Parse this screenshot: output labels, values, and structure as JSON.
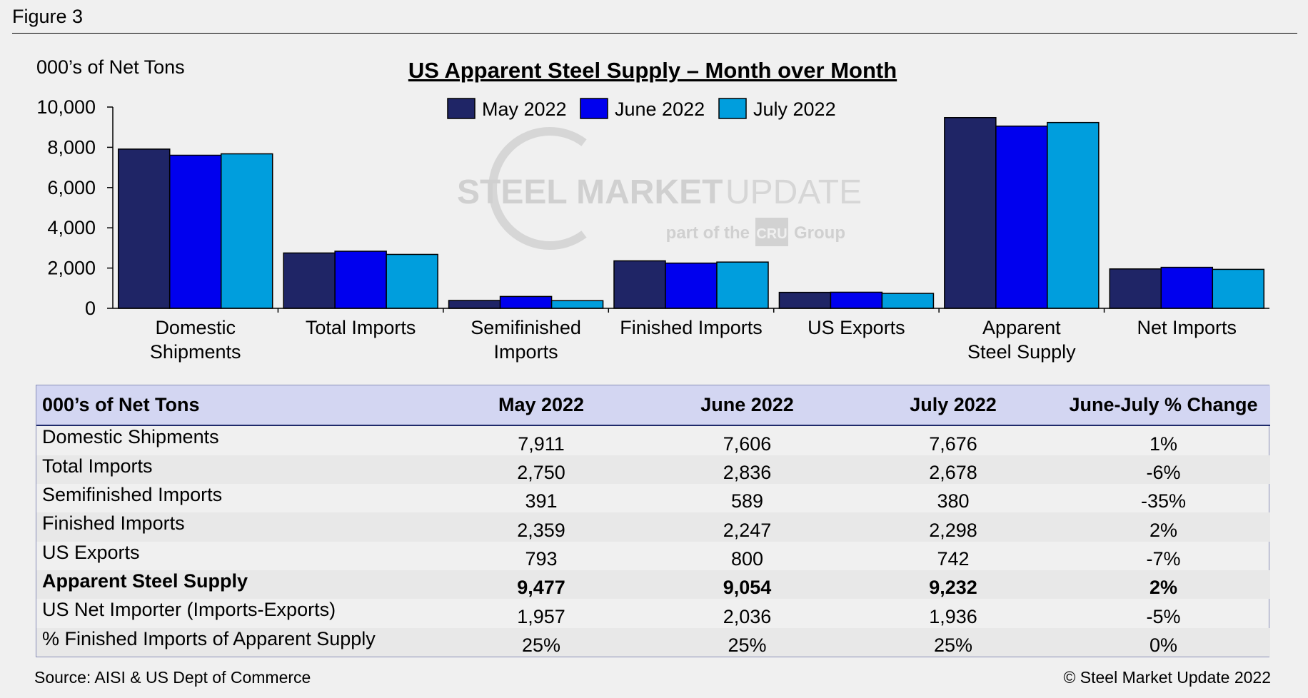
{
  "figure_label": "Figure 3",
  "watermark": {
    "brand_bold": "STEEL MARKET",
    "brand_light": "UPDATE",
    "tagline_pre": "part of the",
    "tagline_logo": "CRU",
    "tagline_post": "Group"
  },
  "chart_data": {
    "type": "bar",
    "title": "US Apparent Steel Supply – Month over Month",
    "ylabel": "000’s of Net Tons",
    "xlabel": "",
    "ylim": [
      0,
      10000
    ],
    "yticks": [
      "0",
      "2,000",
      "4,000",
      "6,000",
      "8,000",
      "10,000"
    ],
    "ytick_values": [
      0,
      2000,
      4000,
      6000,
      8000,
      10000
    ],
    "grid": false,
    "legend_position": "top-center",
    "categories": [
      [
        "Domestic",
        "Shipments"
      ],
      [
        "Total Imports"
      ],
      [
        "Semifinished",
        "Imports"
      ],
      [
        "Finished Imports"
      ],
      [
        "US Exports"
      ],
      [
        "Apparent",
        "Steel Supply"
      ],
      [
        "Net Imports"
      ]
    ],
    "series": [
      {
        "name": "May 2022",
        "color": "#1f2566",
        "values": [
          7911,
          2750,
          391,
          2359,
          793,
          9477,
          1957
        ]
      },
      {
        "name": "June 2022",
        "color": "#0000ee",
        "values": [
          7606,
          2836,
          589,
          2247,
          800,
          9054,
          2036
        ]
      },
      {
        "name": "July 2022",
        "color": "#009edd",
        "values": [
          7676,
          2678,
          380,
          2298,
          742,
          9232,
          1936
        ]
      }
    ]
  },
  "table": {
    "headers": [
      "000’s of Net Tons",
      "May 2022",
      "June 2022",
      "July 2022",
      "June-July % Change"
    ],
    "rows": [
      {
        "cells": [
          "Domestic Shipments",
          "7,911",
          "7,606",
          "7,676",
          "1%"
        ],
        "bold": false
      },
      {
        "cells": [
          "Total Imports",
          "2,750",
          "2,836",
          "2,678",
          "-6%"
        ],
        "bold": false
      },
      {
        "cells": [
          "Semifinished Imports",
          "391",
          "589",
          "380",
          "-35%"
        ],
        "bold": false
      },
      {
        "cells": [
          "Finished Imports",
          "2,359",
          "2,247",
          "2,298",
          "2%"
        ],
        "bold": false
      },
      {
        "cells": [
          "US Exports",
          "793",
          "800",
          "742",
          "-7%"
        ],
        "bold": false
      },
      {
        "cells": [
          "Apparent Steel Supply",
          "9,477",
          "9,054",
          "9,232",
          "2%"
        ],
        "bold": true
      },
      {
        "cells": [
          "US Net Importer (Imports-Exports)",
          "1,957",
          "2,036",
          "1,936",
          "-5%"
        ],
        "bold": false
      },
      {
        "cells": [
          "% Finished Imports of Apparent Supply",
          "25%",
          "25%",
          "25%",
          "0%"
        ],
        "bold": false
      }
    ]
  },
  "source": "Source:  AISI & US Dept of Commerce",
  "copyright": "© Steel Market Update 2022"
}
